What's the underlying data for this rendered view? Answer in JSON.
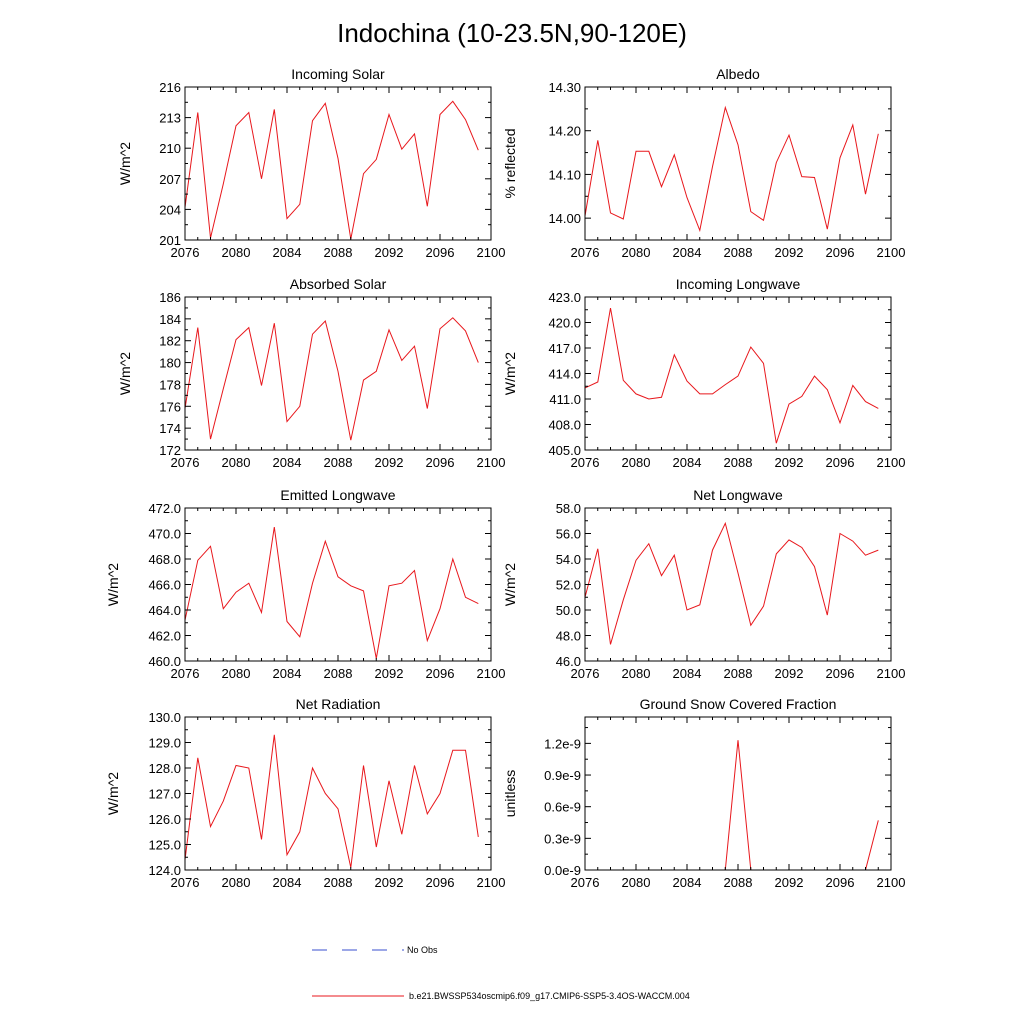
{
  "title": "Indochina (10-23.5N,90-120E)",
  "colors": {
    "model": "#e8171c",
    "obs": "#3a4fcf",
    "axis": "#000000"
  },
  "legend": {
    "obs_label": "No Obs",
    "model_label": "b.e21.BWSSP534oscmip6.f09_g17.CMIP6-SSP5-3.4OS-WACCM.004"
  },
  "chart_data": [
    {
      "type": "line",
      "title": "Incoming Solar",
      "ylabel": "W/m^2",
      "xlabel": "",
      "xlim": [
        2076,
        2100
      ],
      "ylim": [
        201,
        216
      ],
      "xticks": [
        2076,
        2080,
        2084,
        2088,
        2092,
        2096,
        2100
      ],
      "xtick_labels": [
        "2076",
        "2080",
        "2084",
        "2088",
        "2092",
        "2096",
        "2100"
      ],
      "yticks": [
        201,
        204,
        207,
        210,
        213,
        216
      ],
      "ytick_labels": [
        "201",
        "204",
        "207",
        "210",
        "213",
        "216"
      ],
      "x": [
        2076,
        2077,
        2078,
        2079,
        2080,
        2081,
        2082,
        2083,
        2084,
        2085,
        2086,
        2087,
        2088,
        2089,
        2090,
        2091,
        2092,
        2093,
        2094,
        2095,
        2096,
        2097,
        2098,
        2099
      ],
      "series": [
        {
          "name": "b.e21.BWSSP534oscmip6.f09_g17.CMIP6-SSP5-3.4OS-WACCM.004",
          "values": [
            204.2,
            213.5,
            201.2,
            206.5,
            212.2,
            213.5,
            207.0,
            213.8,
            203.1,
            204.5,
            212.7,
            214.4,
            209.0,
            201.1,
            207.5,
            208.9,
            213.3,
            209.9,
            211.4,
            204.3,
            213.3,
            214.6,
            212.8,
            209.8
          ]
        }
      ]
    },
    {
      "type": "line",
      "title": "Albedo",
      "ylabel": "% reflected",
      "xlabel": "",
      "xlim": [
        2076,
        2100
      ],
      "ylim": [
        13.95,
        14.3
      ],
      "xticks": [
        2076,
        2080,
        2084,
        2088,
        2092,
        2096,
        2100
      ],
      "xtick_labels": [
        "2076",
        "2080",
        "2084",
        "2088",
        "2092",
        "2096",
        "2100"
      ],
      "yticks": [
        14.0,
        14.1,
        14.2,
        14.3
      ],
      "ytick_labels": [
        "14.00",
        "14.10",
        "14.20",
        "14.30"
      ],
      "x": [
        2076,
        2077,
        2078,
        2079,
        2080,
        2081,
        2082,
        2083,
        2084,
        2085,
        2086,
        2087,
        2088,
        2089,
        2090,
        2091,
        2092,
        2093,
        2094,
        2095,
        2096,
        2097,
        2098,
        2099
      ],
      "series": [
        {
          "name": "b.e21.BWSSP534oscmip6.f09_g17.CMIP6-SSP5-3.4OS-WACCM.004",
          "values": [
            14.005,
            14.178,
            14.012,
            13.998,
            14.153,
            14.153,
            14.072,
            14.145,
            14.047,
            13.972,
            14.118,
            14.253,
            14.168,
            14.015,
            13.995,
            14.127,
            14.19,
            14.095,
            14.093,
            13.975,
            14.138,
            14.213,
            14.055,
            14.193
          ]
        }
      ]
    },
    {
      "type": "line",
      "title": "Absorbed Solar",
      "ylabel": "W/m^2",
      "xlabel": "",
      "xlim": [
        2076,
        2100
      ],
      "ylim": [
        172,
        186
      ],
      "xticks": [
        2076,
        2080,
        2084,
        2088,
        2092,
        2096,
        2100
      ],
      "xtick_labels": [
        "2076",
        "2080",
        "2084",
        "2088",
        "2092",
        "2096",
        "2100"
      ],
      "yticks": [
        172,
        174,
        176,
        178,
        180,
        182,
        184,
        186
      ],
      "ytick_labels": [
        "172",
        "174",
        "176",
        "178",
        "180",
        "182",
        "184",
        "186"
      ],
      "x": [
        2076,
        2077,
        2078,
        2079,
        2080,
        2081,
        2082,
        2083,
        2084,
        2085,
        2086,
        2087,
        2088,
        2089,
        2090,
        2091,
        2092,
        2093,
        2094,
        2095,
        2096,
        2097,
        2098,
        2099
      ],
      "series": [
        {
          "name": "b.e21.BWSSP534oscmip6.f09_g17.CMIP6-SSP5-3.4OS-WACCM.004",
          "values": [
            175.8,
            183.2,
            173.0,
            177.6,
            182.1,
            183.2,
            177.9,
            183.6,
            174.6,
            176.0,
            182.6,
            183.8,
            179.2,
            172.9,
            178.4,
            179.2,
            183.0,
            180.2,
            181.5,
            175.8,
            183.1,
            184.1,
            182.9,
            180.0
          ]
        }
      ]
    },
    {
      "type": "line",
      "title": "Incoming Longwave",
      "ylabel": "W/m^2",
      "xlabel": "",
      "xlim": [
        2076,
        2100
      ],
      "ylim": [
        405.0,
        423.0
      ],
      "xticks": [
        2076,
        2080,
        2084,
        2088,
        2092,
        2096,
        2100
      ],
      "xtick_labels": [
        "2076",
        "2080",
        "2084",
        "2088",
        "2092",
        "2096",
        "2100"
      ],
      "yticks": [
        405.0,
        408.0,
        411.0,
        414.0,
        417.0,
        420.0,
        423.0
      ],
      "ytick_labels": [
        "405.0",
        "408.0",
        "411.0",
        "414.0",
        "417.0",
        "420.0",
        "423.0"
      ],
      "x": [
        2076,
        2077,
        2078,
        2079,
        2080,
        2081,
        2082,
        2083,
        2084,
        2085,
        2086,
        2087,
        2088,
        2089,
        2090,
        2091,
        2092,
        2093,
        2094,
        2095,
        2096,
        2097,
        2098,
        2099
      ],
      "series": [
        {
          "name": "b.e21.BWSSP534oscmip6.f09_g17.CMIP6-SSP5-3.4OS-WACCM.004",
          "values": [
            412.3,
            413.0,
            421.7,
            413.2,
            411.6,
            411.0,
            411.2,
            416.2,
            413.1,
            411.6,
            411.6,
            412.7,
            413.7,
            417.1,
            415.2,
            405.8,
            410.4,
            411.3,
            413.7,
            412.1,
            408.2,
            412.6,
            410.7,
            409.9
          ]
        }
      ]
    },
    {
      "type": "line",
      "title": "Emitted Longwave",
      "ylabel": "W/m^2",
      "xlabel": "",
      "xlim": [
        2076,
        2100
      ],
      "ylim": [
        460.0,
        472.0
      ],
      "xticks": [
        2076,
        2080,
        2084,
        2088,
        2092,
        2096,
        2100
      ],
      "xtick_labels": [
        "2076",
        "2080",
        "2084",
        "2088",
        "2092",
        "2096",
        "2100"
      ],
      "yticks": [
        460.0,
        462.0,
        464.0,
        466.0,
        468.0,
        470.0,
        472.0
      ],
      "ytick_labels": [
        "460.0",
        "462.0",
        "464.0",
        "466.0",
        "468.0",
        "470.0",
        "472.0"
      ],
      "x": [
        2076,
        2077,
        2078,
        2079,
        2080,
        2081,
        2082,
        2083,
        2084,
        2085,
        2086,
        2087,
        2088,
        2089,
        2090,
        2091,
        2092,
        2093,
        2094,
        2095,
        2096,
        2097,
        2098,
        2099
      ],
      "series": [
        {
          "name": "b.e21.BWSSP534oscmip6.f09_g17.CMIP6-SSP5-3.4OS-WACCM.004",
          "values": [
            463.2,
            467.9,
            469.0,
            464.1,
            465.4,
            466.1,
            463.8,
            470.5,
            463.1,
            461.9,
            466.1,
            469.4,
            466.6,
            465.9,
            465.5,
            460.2,
            465.9,
            466.1,
            467.1,
            461.6,
            464.1,
            468.0,
            465.0,
            464.5
          ]
        }
      ]
    },
    {
      "type": "line",
      "title": "Net Longwave",
      "ylabel": "W/m^2",
      "xlabel": "",
      "xlim": [
        2076,
        2100
      ],
      "ylim": [
        46.0,
        58.0
      ],
      "xticks": [
        2076,
        2080,
        2084,
        2088,
        2092,
        2096,
        2100
      ],
      "xtick_labels": [
        "2076",
        "2080",
        "2084",
        "2088",
        "2092",
        "2096",
        "2100"
      ],
      "yticks": [
        46.0,
        48.0,
        50.0,
        52.0,
        54.0,
        56.0,
        58.0
      ],
      "ytick_labels": [
        "46.0",
        "48.0",
        "50.0",
        "52.0",
        "54.0",
        "56.0",
        "58.0"
      ],
      "x": [
        2076,
        2077,
        2078,
        2079,
        2080,
        2081,
        2082,
        2083,
        2084,
        2085,
        2086,
        2087,
        2088,
        2089,
        2090,
        2091,
        2092,
        2093,
        2094,
        2095,
        2096,
        2097,
        2098,
        2099
      ],
      "series": [
        {
          "name": "b.e21.BWSSP534oscmip6.f09_g17.CMIP6-SSP5-3.4OS-WACCM.004",
          "values": [
            51.0,
            54.8,
            47.3,
            50.8,
            53.9,
            55.2,
            52.7,
            54.3,
            50.0,
            50.4,
            54.7,
            56.8,
            52.9,
            48.8,
            50.3,
            54.4,
            55.5,
            54.9,
            53.4,
            49.6,
            56.0,
            55.4,
            54.3,
            54.7
          ]
        }
      ]
    },
    {
      "type": "line",
      "title": "Net Radiation",
      "ylabel": "W/m^2",
      "xlabel": "",
      "xlim": [
        2076,
        2100
      ],
      "ylim": [
        124.0,
        130.0
      ],
      "xticks": [
        2076,
        2080,
        2084,
        2088,
        2092,
        2096,
        2100
      ],
      "xtick_labels": [
        "2076",
        "2080",
        "2084",
        "2088",
        "2092",
        "2096",
        "2100"
      ],
      "yticks": [
        124.0,
        125.0,
        126.0,
        127.0,
        128.0,
        129.0,
        130.0
      ],
      "ytick_labels": [
        "124.0",
        "125.0",
        "126.0",
        "127.0",
        "128.0",
        "129.0",
        "130.0"
      ],
      "x": [
        2076,
        2077,
        2078,
        2079,
        2080,
        2081,
        2082,
        2083,
        2084,
        2085,
        2086,
        2087,
        2088,
        2089,
        2090,
        2091,
        2092,
        2093,
        2094,
        2095,
        2096,
        2097,
        2098,
        2099
      ],
      "series": [
        {
          "name": "b.e21.BWSSP534oscmip6.f09_g17.CMIP6-SSP5-3.4OS-WACCM.004",
          "values": [
            124.4,
            128.4,
            125.7,
            126.7,
            128.1,
            128.0,
            125.2,
            129.3,
            124.6,
            125.5,
            128.0,
            127.0,
            126.4,
            124.1,
            128.1,
            124.9,
            127.5,
            125.4,
            128.1,
            126.2,
            127.0,
            128.7,
            128.7,
            125.3
          ]
        }
      ]
    },
    {
      "type": "line",
      "title": "Ground Snow Covered Fraction",
      "ylabel": "unitless",
      "xlabel": "",
      "xlim": [
        2076,
        2100
      ],
      "ylim": [
        0.0,
        1.45
      ],
      "yunit_note": "values in units of 1e-9",
      "xticks": [
        2076,
        2080,
        2084,
        2088,
        2092,
        2096,
        2100
      ],
      "xtick_labels": [
        "2076",
        "2080",
        "2084",
        "2088",
        "2092",
        "2096",
        "2100"
      ],
      "yticks": [
        0.0,
        0.3,
        0.6,
        0.9,
        1.2
      ],
      "ytick_labels": [
        "0.0e-9",
        "0.3e-9",
        "0.6e-9",
        "0.9e-9",
        "1.2e-9"
      ],
      "x": [
        2076,
        2077,
        2078,
        2079,
        2080,
        2081,
        2082,
        2083,
        2084,
        2085,
        2086,
        2087,
        2088,
        2089,
        2090,
        2091,
        2092,
        2093,
        2094,
        2095,
        2096,
        2097,
        2098,
        2099
      ],
      "series": [
        {
          "name": "b.e21.BWSSP534oscmip6.f09_g17.CMIP6-SSP5-3.4OS-WACCM.004",
          "values": [
            0,
            0,
            0,
            0,
            0,
            0,
            0,
            0,
            0,
            0,
            0,
            0,
            1.23,
            0,
            0,
            0,
            0,
            0,
            0,
            0,
            0,
            0,
            0,
            0.47
          ]
        }
      ]
    }
  ]
}
